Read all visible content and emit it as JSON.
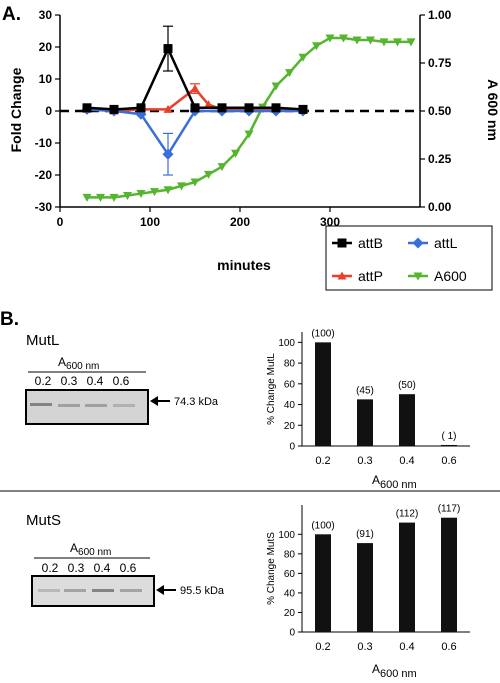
{
  "panel_a": {
    "label": "A.",
    "legend": [
      {
        "name": "attB",
        "color": "#000000",
        "marker": "square"
      },
      {
        "name": "attL",
        "color": "#3a6fd8",
        "marker": "diamond"
      },
      {
        "name": "attP",
        "color": "#e8402a",
        "marker": "triangle-up"
      },
      {
        "name": "A600",
        "color": "#55b52f",
        "marker": "triangle-down"
      }
    ]
  },
  "panel_b": {
    "label": "B.",
    "mutl": {
      "title": "MutL",
      "blot_header": "A",
      "blot_header_sub": "600 nm",
      "lanes": [
        "0.2",
        "0.3",
        "0.4",
        "0.6"
      ],
      "band_size": "74.3 kDa"
    },
    "muts": {
      "title": "MutS",
      "blot_header": "A",
      "blot_header_sub": "600 nm",
      "lanes": [
        "0.2",
        "0.3",
        "0.4",
        "0.6"
      ],
      "band_size": "95.5 kDa"
    }
  },
  "chart_data": [
    {
      "type": "line",
      "xlabel": "minutes",
      "ylabel": "Fold Change",
      "y2label": "A 600 nm",
      "xlim": [
        0,
        400
      ],
      "ylim": [
        -30,
        30
      ],
      "y2lim": [
        0,
        1.0
      ],
      "xticks": [
        0,
        100,
        200,
        300
      ],
      "yticks": [
        -30,
        -20,
        -10,
        0,
        10,
        20,
        30
      ],
      "y2ticks": [
        "0.00",
        "0.25",
        "0.50",
        "0.75",
        "1.00"
      ],
      "reference_line": 0,
      "series": [
        {
          "name": "attB",
          "axis": "left",
          "color": "#000000",
          "marker": "square",
          "x": [
            30,
            60,
            90,
            120,
            150,
            180,
            210,
            240,
            270
          ],
          "y": [
            1,
            0.5,
            1,
            19.5,
            1,
            1,
            1,
            1,
            0.5
          ],
          "error": [
            0,
            0,
            0,
            7,
            0,
            0,
            0,
            0,
            0
          ]
        },
        {
          "name": "attL",
          "axis": "left",
          "color": "#3a6fd8",
          "marker": "diamond",
          "x": [
            30,
            60,
            90,
            120,
            150,
            180,
            210,
            240,
            270
          ],
          "y": [
            0.5,
            0,
            -1,
            -13.5,
            0,
            0,
            0,
            0,
            0
          ],
          "error": [
            0,
            0,
            0,
            6.5,
            0,
            0,
            0,
            0,
            0
          ]
        },
        {
          "name": "attP",
          "axis": "left",
          "color": "#e8402a",
          "marker": "triangle-up",
          "x": [
            30,
            60,
            90,
            120,
            150,
            165,
            180,
            210,
            240,
            270
          ],
          "y": [
            0.5,
            0,
            0.5,
            0.5,
            7,
            2,
            0.5,
            0.5,
            0.5,
            0.5
          ],
          "error": [
            0,
            0,
            0,
            0,
            1.5,
            0,
            0,
            0,
            0,
            0
          ]
        },
        {
          "name": "A600",
          "axis": "right",
          "color": "#55b52f",
          "marker": "triangle-down",
          "x": [
            30,
            45,
            60,
            75,
            90,
            105,
            120,
            135,
            150,
            165,
            180,
            195,
            210,
            225,
            240,
            255,
            270,
            285,
            300,
            315,
            330,
            345,
            360,
            375,
            390
          ],
          "y": [
            0.05,
            0.05,
            0.05,
            0.06,
            0.07,
            0.08,
            0.09,
            0.11,
            0.13,
            0.17,
            0.21,
            0.28,
            0.38,
            0.52,
            0.63,
            0.7,
            0.78,
            0.84,
            0.88,
            0.88,
            0.87,
            0.87,
            0.86,
            0.86,
            0.86
          ]
        }
      ]
    },
    {
      "type": "bar",
      "categories": [
        "0.2",
        "0.3",
        "0.4",
        "0.6"
      ],
      "values": [
        100,
        45,
        50,
        1
      ],
      "data_labels": [
        "(100)",
        "(45)",
        "(50)",
        "( 1)"
      ],
      "ylabel": "% Change MutL",
      "xlabel": "A",
      "xlabel_sub": "600 nm",
      "ylim": [
        0,
        110
      ],
      "yticks": [
        0,
        20,
        40,
        60,
        80,
        100
      ]
    },
    {
      "type": "bar",
      "categories": [
        "0.2",
        "0.3",
        "0.4",
        "0.6"
      ],
      "values": [
        100,
        91,
        112,
        117
      ],
      "data_labels": [
        "(100)",
        "(91)",
        "(112)",
        "(117)"
      ],
      "ylabel": "% Change MutS",
      "xlabel": "A",
      "xlabel_sub": "600 nm",
      "ylim": [
        0,
        130
      ],
      "yticks": [
        0,
        20,
        40,
        60,
        80,
        100
      ]
    }
  ]
}
